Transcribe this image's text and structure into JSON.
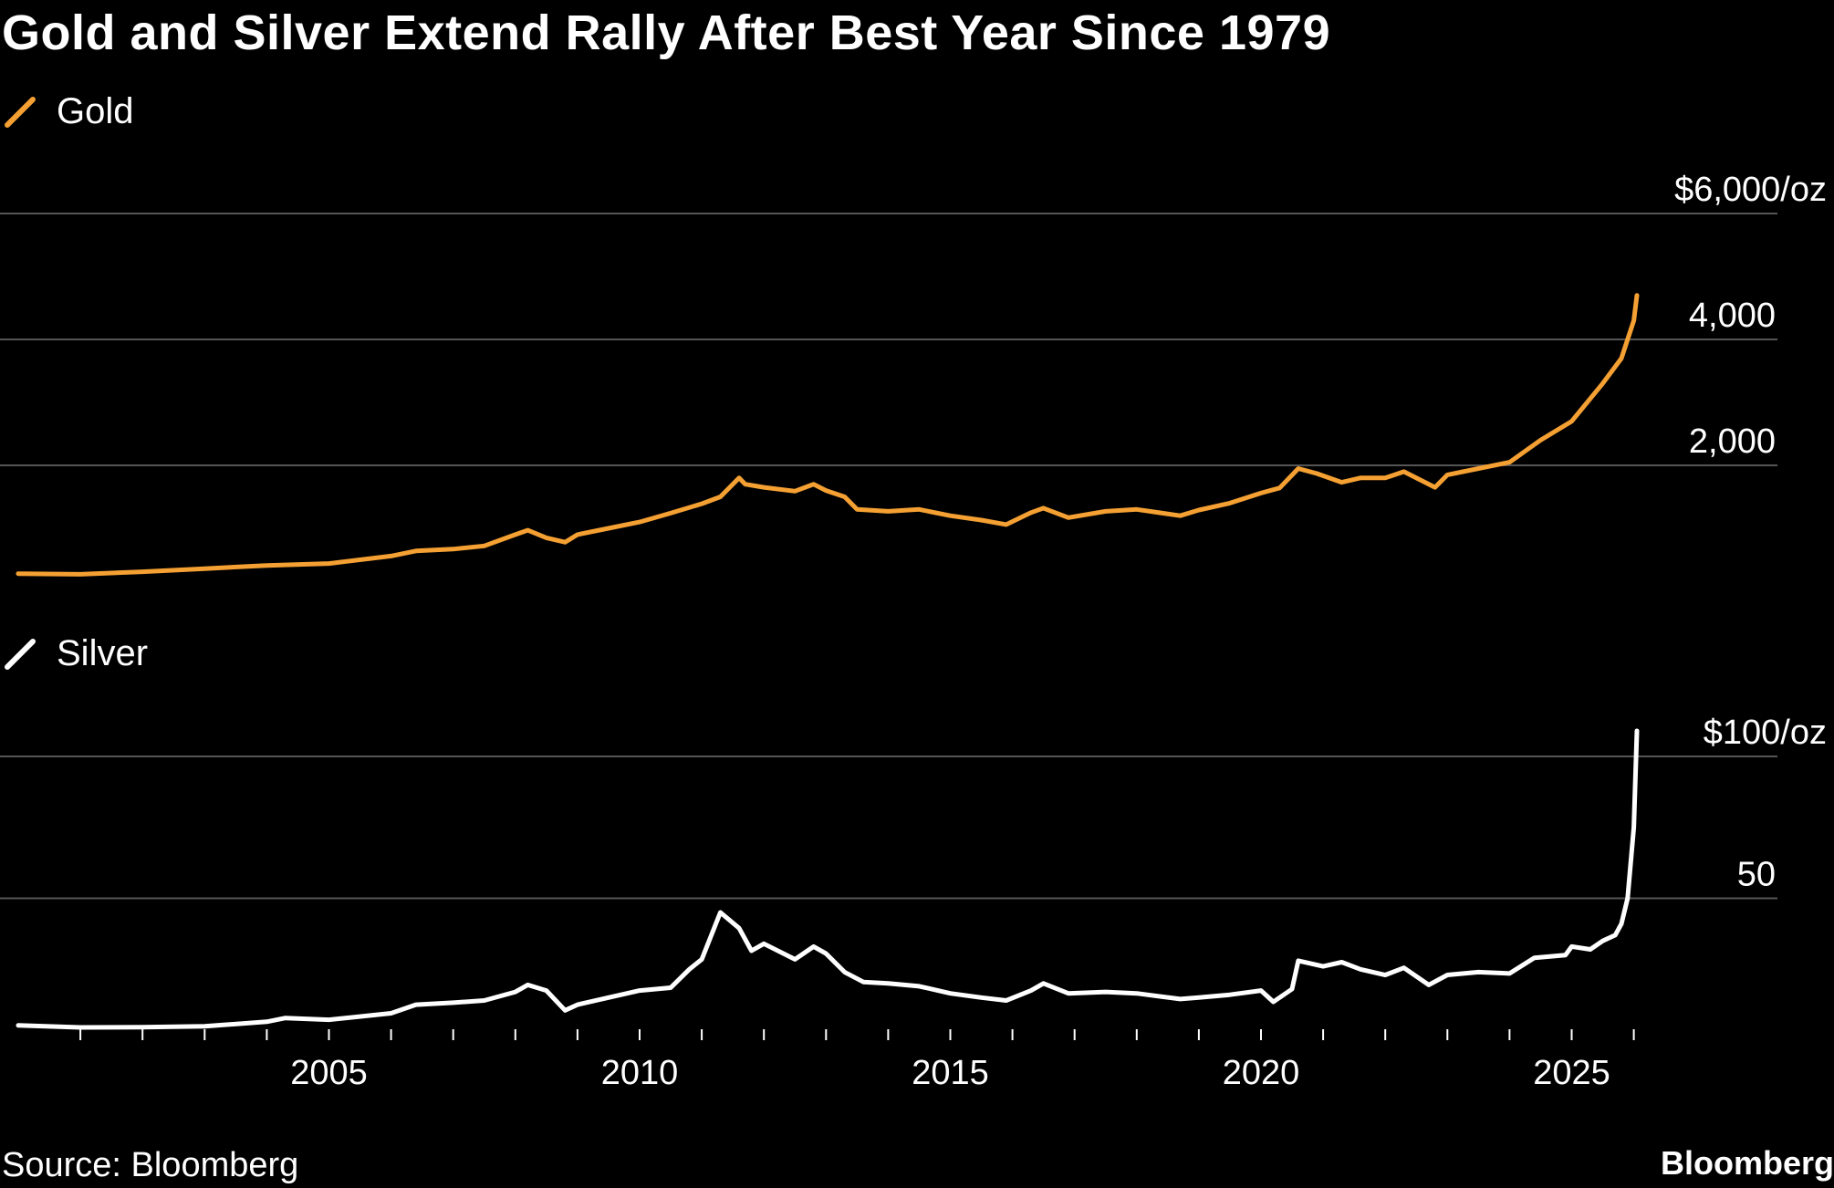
{
  "title": "Gold and Silver Extend Rally After Best Year Since 1979",
  "source": "Source: Bloomberg",
  "brand": "Bloomberg",
  "colors": {
    "gold": "#f5a033",
    "silver": "#ffffff",
    "grid": "#555555",
    "background": "#000000"
  },
  "chart_data": [
    {
      "type": "line",
      "series_name": "Gold",
      "title": "Gold",
      "ylabel": "$/oz",
      "ylim": [
        -1000,
        6000
      ],
      "yticks": [
        2000,
        4000,
        6000
      ],
      "ytick_labels": [
        "2,000",
        "4,000",
        "$6,000/oz"
      ],
      "grid": true,
      "x": [
        2000.0,
        2001.0,
        2002.0,
        2003.0,
        2004.0,
        2005.0,
        2006.0,
        2006.4,
        2007.0,
        2007.5,
        2008.0,
        2008.2,
        2008.5,
        2008.8,
        2009.0,
        2009.5,
        2010.0,
        2010.5,
        2011.0,
        2011.3,
        2011.6,
        2011.7,
        2012.0,
        2012.5,
        2012.8,
        2013.0,
        2013.3,
        2013.5,
        2014.0,
        2014.5,
        2015.0,
        2015.5,
        2015.9,
        2016.3,
        2016.5,
        2016.9,
        2017.5,
        2018.0,
        2018.7,
        2019.0,
        2019.5,
        2020.0,
        2020.3,
        2020.6,
        2020.9,
        2021.3,
        2021.6,
        2022.0,
        2022.3,
        2022.8,
        2023.0,
        2023.5,
        2024.0,
        2024.5,
        2025.0,
        2025.5,
        2025.8,
        2026.0,
        2026.05
      ],
      "values": [
        280,
        270,
        310,
        360,
        410,
        440,
        560,
        640,
        670,
        720,
        900,
        970,
        850,
        780,
        900,
        1000,
        1100,
        1240,
        1390,
        1500,
        1800,
        1700,
        1650,
        1590,
        1700,
        1600,
        1500,
        1300,
        1270,
        1300,
        1200,
        1130,
        1060,
        1250,
        1320,
        1170,
        1270,
        1300,
        1200,
        1290,
        1400,
        1560,
        1640,
        1950,
        1870,
        1730,
        1800,
        1800,
        1900,
        1650,
        1850,
        1950,
        2050,
        2400,
        2700,
        3300,
        3700,
        4300,
        4700
      ]
    },
    {
      "type": "line",
      "series_name": "Silver",
      "title": "Silver",
      "ylabel": "$/oz",
      "xlabel": "",
      "xlim": [
        2000,
        2027.5
      ],
      "ylim": [
        0,
        100
      ],
      "yticks": [
        50,
        100
      ],
      "ytick_labels": [
        "50",
        "$100/oz"
      ],
      "xticks": [
        2005,
        2010,
        2015,
        2020,
        2025
      ],
      "xtick_labels": [
        "2005",
        "2010",
        "2015",
        "2020",
        "2025"
      ],
      "grid": true,
      "x": [
        2000.0,
        2001.0,
        2002.0,
        2003.0,
        2004.0,
        2004.3,
        2005.0,
        2006.0,
        2006.4,
        2007.0,
        2007.5,
        2008.0,
        2008.2,
        2008.5,
        2008.8,
        2009.0,
        2009.5,
        2010.0,
        2010.5,
        2010.8,
        2011.0,
        2011.3,
        2011.6,
        2011.8,
        2012.0,
        2012.5,
        2012.8,
        2013.0,
        2013.3,
        2013.6,
        2014.0,
        2014.5,
        2015.0,
        2015.5,
        2015.9,
        2016.3,
        2016.5,
        2016.9,
        2017.5,
        2018.0,
        2018.7,
        2019.0,
        2019.5,
        2020.0,
        2020.2,
        2020.5,
        2020.6,
        2021.0,
        2021.3,
        2021.6,
        2022.0,
        2022.3,
        2022.7,
        2023.0,
        2023.5,
        2024.0,
        2024.4,
        2024.9,
        2025.0,
        2025.3,
        2025.5,
        2025.7,
        2025.8,
        2025.9,
        2026.0,
        2026.05
      ],
      "values": [
        5.2,
        4.5,
        4.6,
        4.9,
        6.5,
        7.8,
        7.2,
        9.5,
        12.5,
        13.2,
        14.0,
        17.0,
        19.5,
        17.5,
        10.5,
        12.5,
        15.0,
        17.5,
        18.5,
        25.0,
        28.5,
        45.0,
        39.5,
        31.5,
        34.0,
        28.5,
        33.0,
        30.5,
        24.0,
        20.5,
        20.0,
        19.0,
        16.5,
        15.0,
        14.0,
        17.5,
        20.0,
        16.5,
        17.0,
        16.5,
        14.5,
        15.0,
        16.0,
        17.5,
        13.5,
        18.0,
        28.0,
        26.0,
        27.5,
        25.0,
        23.0,
        25.5,
        19.5,
        23.0,
        24.0,
        23.5,
        29.0,
        30.0,
        33.0,
        32.0,
        35.0,
        37.0,
        41.0,
        50.0,
        75.0,
        109.0
      ]
    }
  ]
}
